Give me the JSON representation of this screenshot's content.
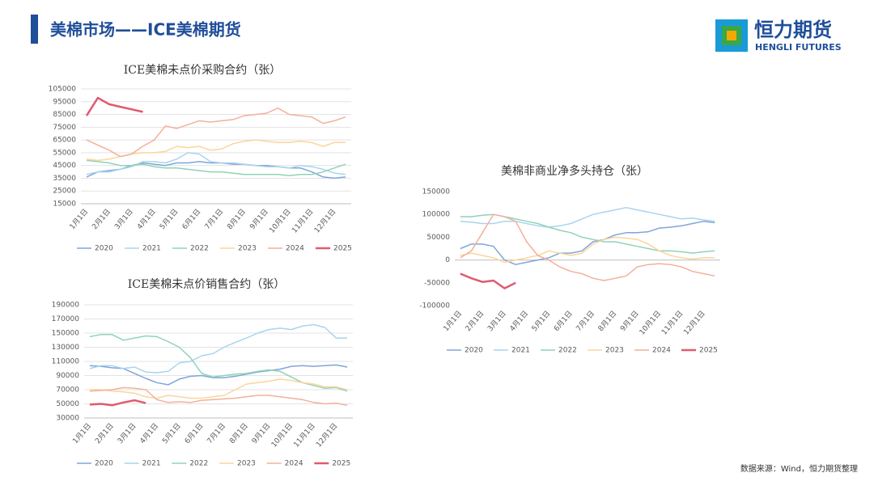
{
  "header": {
    "title": "美棉市场——ICE美棉期货",
    "logo_cn": "恒力期货",
    "logo_en": "HENGLI FUTURES"
  },
  "source": "数据来源：Wind，恒力期货整理",
  "chart_data": [
    {
      "type": "line",
      "title": "ICE美棉未点价采购合约（张）",
      "categories": [
        "1月1日",
        null,
        "2月1日",
        null,
        "3月1日",
        null,
        "4月1日",
        null,
        "5月1日",
        null,
        "6月1日",
        null,
        "7月1日",
        null,
        "8月1日",
        null,
        "9月1日",
        null,
        "10月1日",
        null,
        "11月1日",
        null,
        "12月1日",
        null
      ],
      "ylim": [
        15000,
        105000
      ],
      "yticks": [
        15000,
        25000,
        35000,
        45000,
        55000,
        65000,
        75000,
        85000,
        95000,
        105000
      ],
      "grid": true,
      "series": [
        {
          "name": "2020",
          "color": "#7ea6d9",
          "values": [
            36000,
            40000,
            41000,
            42000,
            45000,
            47000,
            46000,
            45000,
            47000,
            47000,
            48000,
            47000,
            47000,
            46000,
            46000,
            45000,
            45000,
            44000,
            43000,
            43000,
            40000,
            36000,
            35000,
            36000
          ]
        },
        {
          "name": "2021",
          "color": "#a9d4ee",
          "values": [
            38000,
            40000,
            40000,
            42000,
            44000,
            48000,
            48000,
            47000,
            50000,
            55000,
            54000,
            48000,
            47000,
            47000,
            46000,
            45000,
            44000,
            44000,
            43000,
            45000,
            44000,
            42000,
            39000,
            38000
          ]
        },
        {
          "name": "2022",
          "color": "#8fd3b8",
          "values": [
            49000,
            48000,
            47000,
            45000,
            45000,
            46000,
            44000,
            43000,
            43000,
            42000,
            41000,
            40000,
            40000,
            39000,
            38000,
            38000,
            38000,
            38000,
            37000,
            38000,
            38000,
            40000,
            43000,
            46000
          ]
        },
        {
          "name": "2023",
          "color": "#fcd59a",
          "values": [
            50000,
            49000,
            50000,
            52000,
            54000,
            55000,
            55000,
            56000,
            60000,
            59000,
            60000,
            57000,
            58000,
            62000,
            64000,
            65000,
            64000,
            63000,
            63000,
            64000,
            63000,
            60000,
            63000,
            63000
          ]
        },
        {
          "name": "2024",
          "color": "#f4b09a",
          "values": [
            65000,
            61000,
            57000,
            52000,
            54000,
            60000,
            65000,
            76000,
            74000,
            77000,
            80000,
            79000,
            80000,
            81000,
            84000,
            85000,
            86000,
            90000,
            85000,
            84000,
            83000,
            78000,
            80000,
            83000
          ]
        },
        {
          "name": "2025",
          "color": "#e05a70",
          "values": [
            84000,
            98000,
            93000,
            91000,
            89000,
            87000,
            null,
            null,
            null,
            null,
            null,
            null,
            null,
            null,
            null,
            null,
            null,
            null,
            null,
            null,
            null,
            null,
            null,
            null
          ]
        }
      ]
    },
    {
      "type": "line",
      "title": "ICE美棉未点价销售合约（张）",
      "categories": [
        "1月1日",
        null,
        "2月1日",
        null,
        "3月1日",
        null,
        "4月1日",
        null,
        "5月1日",
        null,
        "6月1日",
        null,
        "7月1日",
        null,
        "8月1日",
        null,
        "9月1日",
        null,
        "10月1日",
        null,
        "11月1日",
        null,
        "12月1日",
        null
      ],
      "ylim": [
        30000,
        190000
      ],
      "yticks": [
        30000,
        50000,
        70000,
        90000,
        110000,
        130000,
        150000,
        170000,
        190000
      ],
      "grid": true,
      "series": [
        {
          "name": "2020",
          "color": "#7ea6d9",
          "values": [
            104000,
            103000,
            101000,
            100000,
            93000,
            86000,
            80000,
            77000,
            85000,
            89000,
            90000,
            87000,
            87000,
            89000,
            92000,
            95000,
            97000,
            99000,
            103000,
            104000,
            103000,
            104000,
            105000,
            102000
          ]
        },
        {
          "name": "2021",
          "color": "#a9d4ee",
          "values": [
            100000,
            104000,
            104000,
            100000,
            102000,
            95000,
            94000,
            96000,
            108000,
            110000,
            118000,
            121000,
            130000,
            137000,
            143000,
            150000,
            155000,
            157000,
            155000,
            160000,
            162000,
            158000,
            143000,
            143000
          ]
        },
        {
          "name": "2022",
          "color": "#8fd3b8",
          "values": [
            145000,
            148000,
            148000,
            140000,
            143000,
            146000,
            145000,
            138000,
            130000,
            115000,
            93000,
            88000,
            90000,
            92000,
            93000,
            96000,
            98000,
            96000,
            88000,
            80000,
            76000,
            72000,
            73000,
            68000
          ]
        },
        {
          "name": "2023",
          "color": "#fcd59a",
          "values": [
            70000,
            70000,
            68000,
            67000,
            65000,
            60000,
            58000,
            62000,
            60000,
            58000,
            58000,
            60000,
            62000,
            70000,
            78000,
            80000,
            82000,
            85000,
            83000,
            80000,
            78000,
            74000,
            74000,
            70000
          ]
        },
        {
          "name": "2024",
          "color": "#f4b09a",
          "values": [
            68000,
            69000,
            70000,
            73000,
            72000,
            70000,
            56000,
            52000,
            53000,
            52000,
            55000,
            56000,
            57000,
            58000,
            60000,
            62000,
            62000,
            60000,
            58000,
            56000,
            52000,
            50000,
            51000,
            48000
          ]
        },
        {
          "name": "2025",
          "color": "#e05a70",
          "values": [
            49000,
            50000,
            48000,
            52000,
            55000,
            51000,
            null,
            null,
            null,
            null,
            null,
            null,
            null,
            null,
            null,
            null,
            null,
            null,
            null,
            null,
            null,
            null,
            null,
            null
          ]
        }
      ]
    },
    {
      "type": "line",
      "title": "美棉非商业净多头持仓（张）",
      "categories": [
        "1月1日",
        null,
        "2月1日",
        null,
        "3月1日",
        null,
        "4月1日",
        null,
        "5月1日",
        null,
        "6月1日",
        null,
        "7月1日",
        null,
        "8月1日",
        null,
        "9月1日",
        null,
        "10月1日",
        null,
        "11月1日",
        null,
        "12月1日",
        null
      ],
      "ylim": [
        -100000,
        150000
      ],
      "yticks": [
        -100000,
        -50000,
        0,
        50000,
        100000,
        150000
      ],
      "grid": false,
      "series": [
        {
          "name": "2020",
          "color": "#7ea6d9",
          "values": [
            25000,
            35000,
            35000,
            30000,
            0,
            -10000,
            -5000,
            0,
            5000,
            15000,
            15000,
            20000,
            40000,
            45000,
            55000,
            60000,
            60000,
            62000,
            70000,
            72000,
            75000,
            80000,
            85000,
            82000
          ]
        },
        {
          "name": "2021",
          "color": "#a9d4ee",
          "values": [
            85000,
            83000,
            80000,
            80000,
            85000,
            85000,
            80000,
            75000,
            72000,
            75000,
            80000,
            90000,
            100000,
            105000,
            110000,
            115000,
            110000,
            105000,
            100000,
            95000,
            90000,
            92000,
            88000,
            85000
          ]
        },
        {
          "name": "2022",
          "color": "#8fd3b8",
          "values": [
            95000,
            95000,
            98000,
            100000,
            95000,
            90000,
            85000,
            80000,
            72000,
            65000,
            60000,
            50000,
            45000,
            40000,
            40000,
            35000,
            30000,
            25000,
            20000,
            20000,
            18000,
            15000,
            18000,
            20000
          ]
        },
        {
          "name": "2023",
          "color": "#fcd59a",
          "values": [
            10000,
            15000,
            10000,
            5000,
            -5000,
            0,
            5000,
            10000,
            20000,
            15000,
            10000,
            15000,
            35000,
            45000,
            50000,
            48000,
            45000,
            35000,
            20000,
            10000,
            5000,
            2000,
            5000,
            5000
          ]
        },
        {
          "name": "2024",
          "color": "#f4b09a",
          "values": [
            5000,
            20000,
            60000,
            100000,
            95000,
            85000,
            40000,
            10000,
            0,
            -15000,
            -25000,
            -30000,
            -40000,
            -45000,
            -40000,
            -35000,
            -15000,
            -10000,
            -8000,
            -10000,
            -15000,
            -25000,
            -30000,
            -35000
          ]
        },
        {
          "name": "2025",
          "color": "#e05a70",
          "values": [
            -30000,
            -40000,
            -48000,
            -45000,
            -62000,
            -50000,
            null,
            null,
            null,
            null,
            null,
            null,
            null,
            null,
            null,
            null,
            null,
            null,
            null,
            null,
            null,
            null,
            null,
            null
          ]
        }
      ]
    }
  ]
}
